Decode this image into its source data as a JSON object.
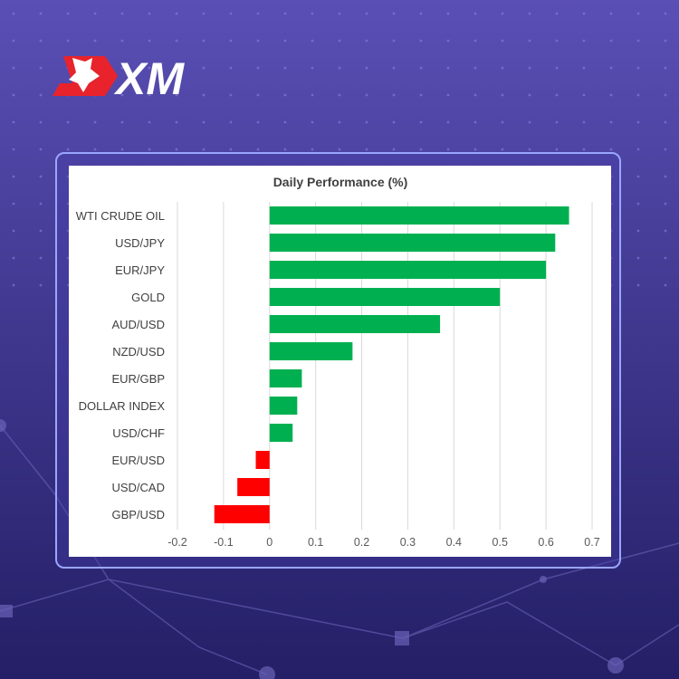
{
  "brand": {
    "logo_text": "XM",
    "accent_color": "#e8232b"
  },
  "colors": {
    "positive": "#00b050",
    "negative": "#ff0000",
    "grid": "#d9d9d9",
    "background_top": "#5a4fb5",
    "background_bottom": "#241f66"
  },
  "chart_data": {
    "type": "bar",
    "orientation": "horizontal",
    "title": "Daily Performance  (%)",
    "categories": [
      "WTI CRUDE OIL",
      "USD/JPY",
      "EUR/JPY",
      "GOLD",
      "AUD/USD",
      "NZD/USD",
      "EUR/GBP",
      "DOLLAR INDEX",
      "USD/CHF",
      "EUR/USD",
      "USD/CAD",
      "GBP/USD"
    ],
    "values": [
      0.65,
      0.62,
      0.6,
      0.5,
      0.37,
      0.18,
      0.07,
      0.06,
      0.05,
      -0.03,
      -0.07,
      -0.12
    ],
    "xlim": [
      -0.2,
      0.7
    ],
    "xticks": [
      "-0.2",
      "-0.1",
      "0",
      "0.1",
      "0.2",
      "0.3",
      "0.4",
      "0.5",
      "0.6",
      "0.7"
    ],
    "xlabel": "",
    "ylabel": "",
    "grid": "vertical",
    "legend": "none"
  }
}
